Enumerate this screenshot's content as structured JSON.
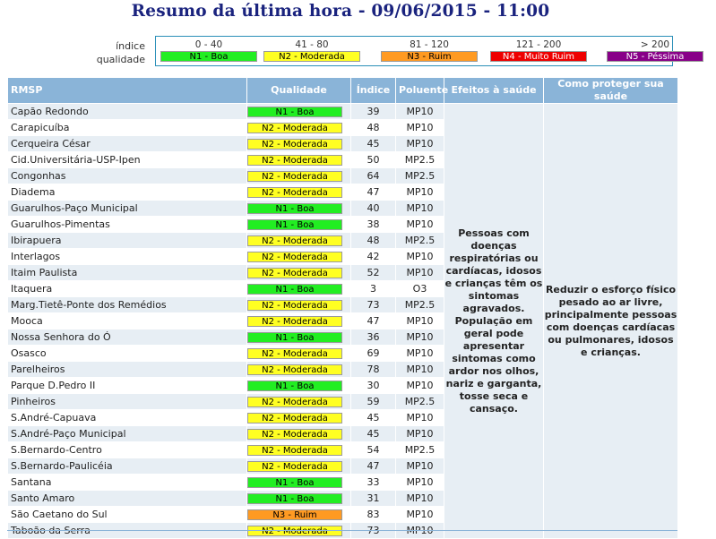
{
  "title": "Resumo da última hora - 09/06/2015 - 11:00",
  "legend": {
    "label_line1": "índice",
    "label_line2": "qualidade",
    "levels": [
      {
        "range": "0 - 40",
        "label": "N1 - Boa",
        "bg": "#22ee22",
        "fg": "#000000"
      },
      {
        "range": "41 - 80",
        "label": "N2 - Moderada",
        "bg": "#ffff22",
        "fg": "#000000"
      },
      {
        "range": "81 - 120",
        "label": "N3 - Ruim",
        "bg": "#ff9a22",
        "fg": "#000000"
      },
      {
        "range": "121 - 200",
        "label": "N4 - Muito Ruim",
        "bg": "#ee0000",
        "fg": "#ffffff"
      },
      {
        "range": "> 200",
        "label": "N5 - Péssima",
        "bg": "#880088",
        "fg": "#ffffff"
      }
    ]
  },
  "table": {
    "headers": {
      "station": "RMSP",
      "quality": "Qualidade",
      "index": "Índice",
      "pollutant": "Poluente",
      "effects": "Efeitos à saúde",
      "protect": "Como proteger sua saúde"
    },
    "effects_text": "Pessoas com doenças respiratórias ou cardíacas, idosos e crianças têm os sintomas agravados. População em geral pode apresentar sintomas como ardor nos olhos, nariz e garganta, tosse seca e cansaço.",
    "protect_text": "Reduzir o esforço físico pesado ao ar livre, principalmente pessoas com doenças cardíacas ou pulmonares, idosos e crianças.",
    "rows": [
      {
        "station": "Capão Redondo",
        "quality": "N1 - Boa",
        "level": 1,
        "index": "39",
        "pollutant": "MP10"
      },
      {
        "station": "Carapicuíba",
        "quality": "N2 - Moderada",
        "level": 2,
        "index": "48",
        "pollutant": "MP10"
      },
      {
        "station": "Cerqueira César",
        "quality": "N2 - Moderada",
        "level": 2,
        "index": "45",
        "pollutant": "MP10"
      },
      {
        "station": "Cid.Universitária-USP-Ipen",
        "quality": "N2 - Moderada",
        "level": 2,
        "index": "50",
        "pollutant": "MP2.5"
      },
      {
        "station": "Congonhas",
        "quality": "N2 - Moderada",
        "level": 2,
        "index": "64",
        "pollutant": "MP2.5"
      },
      {
        "station": "Diadema",
        "quality": "N2 - Moderada",
        "level": 2,
        "index": "47",
        "pollutant": "MP10"
      },
      {
        "station": "Guarulhos-Paço Municipal",
        "quality": "N1 - Boa",
        "level": 1,
        "index": "40",
        "pollutant": "MP10"
      },
      {
        "station": "Guarulhos-Pimentas",
        "quality": "N1 - Boa",
        "level": 1,
        "index": "38",
        "pollutant": "MP10"
      },
      {
        "station": "Ibirapuera",
        "quality": "N2 - Moderada",
        "level": 2,
        "index": "48",
        "pollutant": "MP2.5"
      },
      {
        "station": "Interlagos",
        "quality": "N2 - Moderada",
        "level": 2,
        "index": "42",
        "pollutant": "MP10"
      },
      {
        "station": "Itaim Paulista",
        "quality": "N2 - Moderada",
        "level": 2,
        "index": "52",
        "pollutant": "MP10"
      },
      {
        "station": "Itaquera",
        "quality": "N1 - Boa",
        "level": 1,
        "index": "3",
        "pollutant": "O3"
      },
      {
        "station": "Marg.Tietê-Ponte dos Remédios",
        "quality": "N2 - Moderada",
        "level": 2,
        "index": "73",
        "pollutant": "MP2.5"
      },
      {
        "station": "Mooca",
        "quality": "N2 - Moderada",
        "level": 2,
        "index": "47",
        "pollutant": "MP10"
      },
      {
        "station": "Nossa Senhora do Ó",
        "quality": "N1 - Boa",
        "level": 1,
        "index": "36",
        "pollutant": "MP10"
      },
      {
        "station": "Osasco",
        "quality": "N2 - Moderada",
        "level": 2,
        "index": "69",
        "pollutant": "MP10"
      },
      {
        "station": "Parelheiros",
        "quality": "N2 - Moderada",
        "level": 2,
        "index": "78",
        "pollutant": "MP10"
      },
      {
        "station": "Parque D.Pedro II",
        "quality": "N1 - Boa",
        "level": 1,
        "index": "30",
        "pollutant": "MP10"
      },
      {
        "station": "Pinheiros",
        "quality": "N2 - Moderada",
        "level": 2,
        "index": "59",
        "pollutant": "MP2.5"
      },
      {
        "station": "S.André-Capuava",
        "quality": "N2 - Moderada",
        "level": 2,
        "index": "45",
        "pollutant": "MP10"
      },
      {
        "station": "S.André-Paço Municipal",
        "quality": "N2 - Moderada",
        "level": 2,
        "index": "45",
        "pollutant": "MP10"
      },
      {
        "station": "S.Bernardo-Centro",
        "quality": "N2 - Moderada",
        "level": 2,
        "index": "54",
        "pollutant": "MP2.5"
      },
      {
        "station": "S.Bernardo-Paulicéia",
        "quality": "N2 - Moderada",
        "level": 2,
        "index": "47",
        "pollutant": "MP10"
      },
      {
        "station": "Santana",
        "quality": "N1 - Boa",
        "level": 1,
        "index": "33",
        "pollutant": "MP10"
      },
      {
        "station": "Santo Amaro",
        "quality": "N1 - Boa",
        "level": 1,
        "index": "31",
        "pollutant": "MP10"
      },
      {
        "station": "São Caetano do Sul",
        "quality": "N3 - Ruim",
        "level": 3,
        "index": "83",
        "pollutant": "MP10"
      },
      {
        "station": "Taboão da Serra",
        "quality": "N2 - Moderada",
        "level": 2,
        "index": "73",
        "pollutant": "MP10"
      }
    ]
  }
}
